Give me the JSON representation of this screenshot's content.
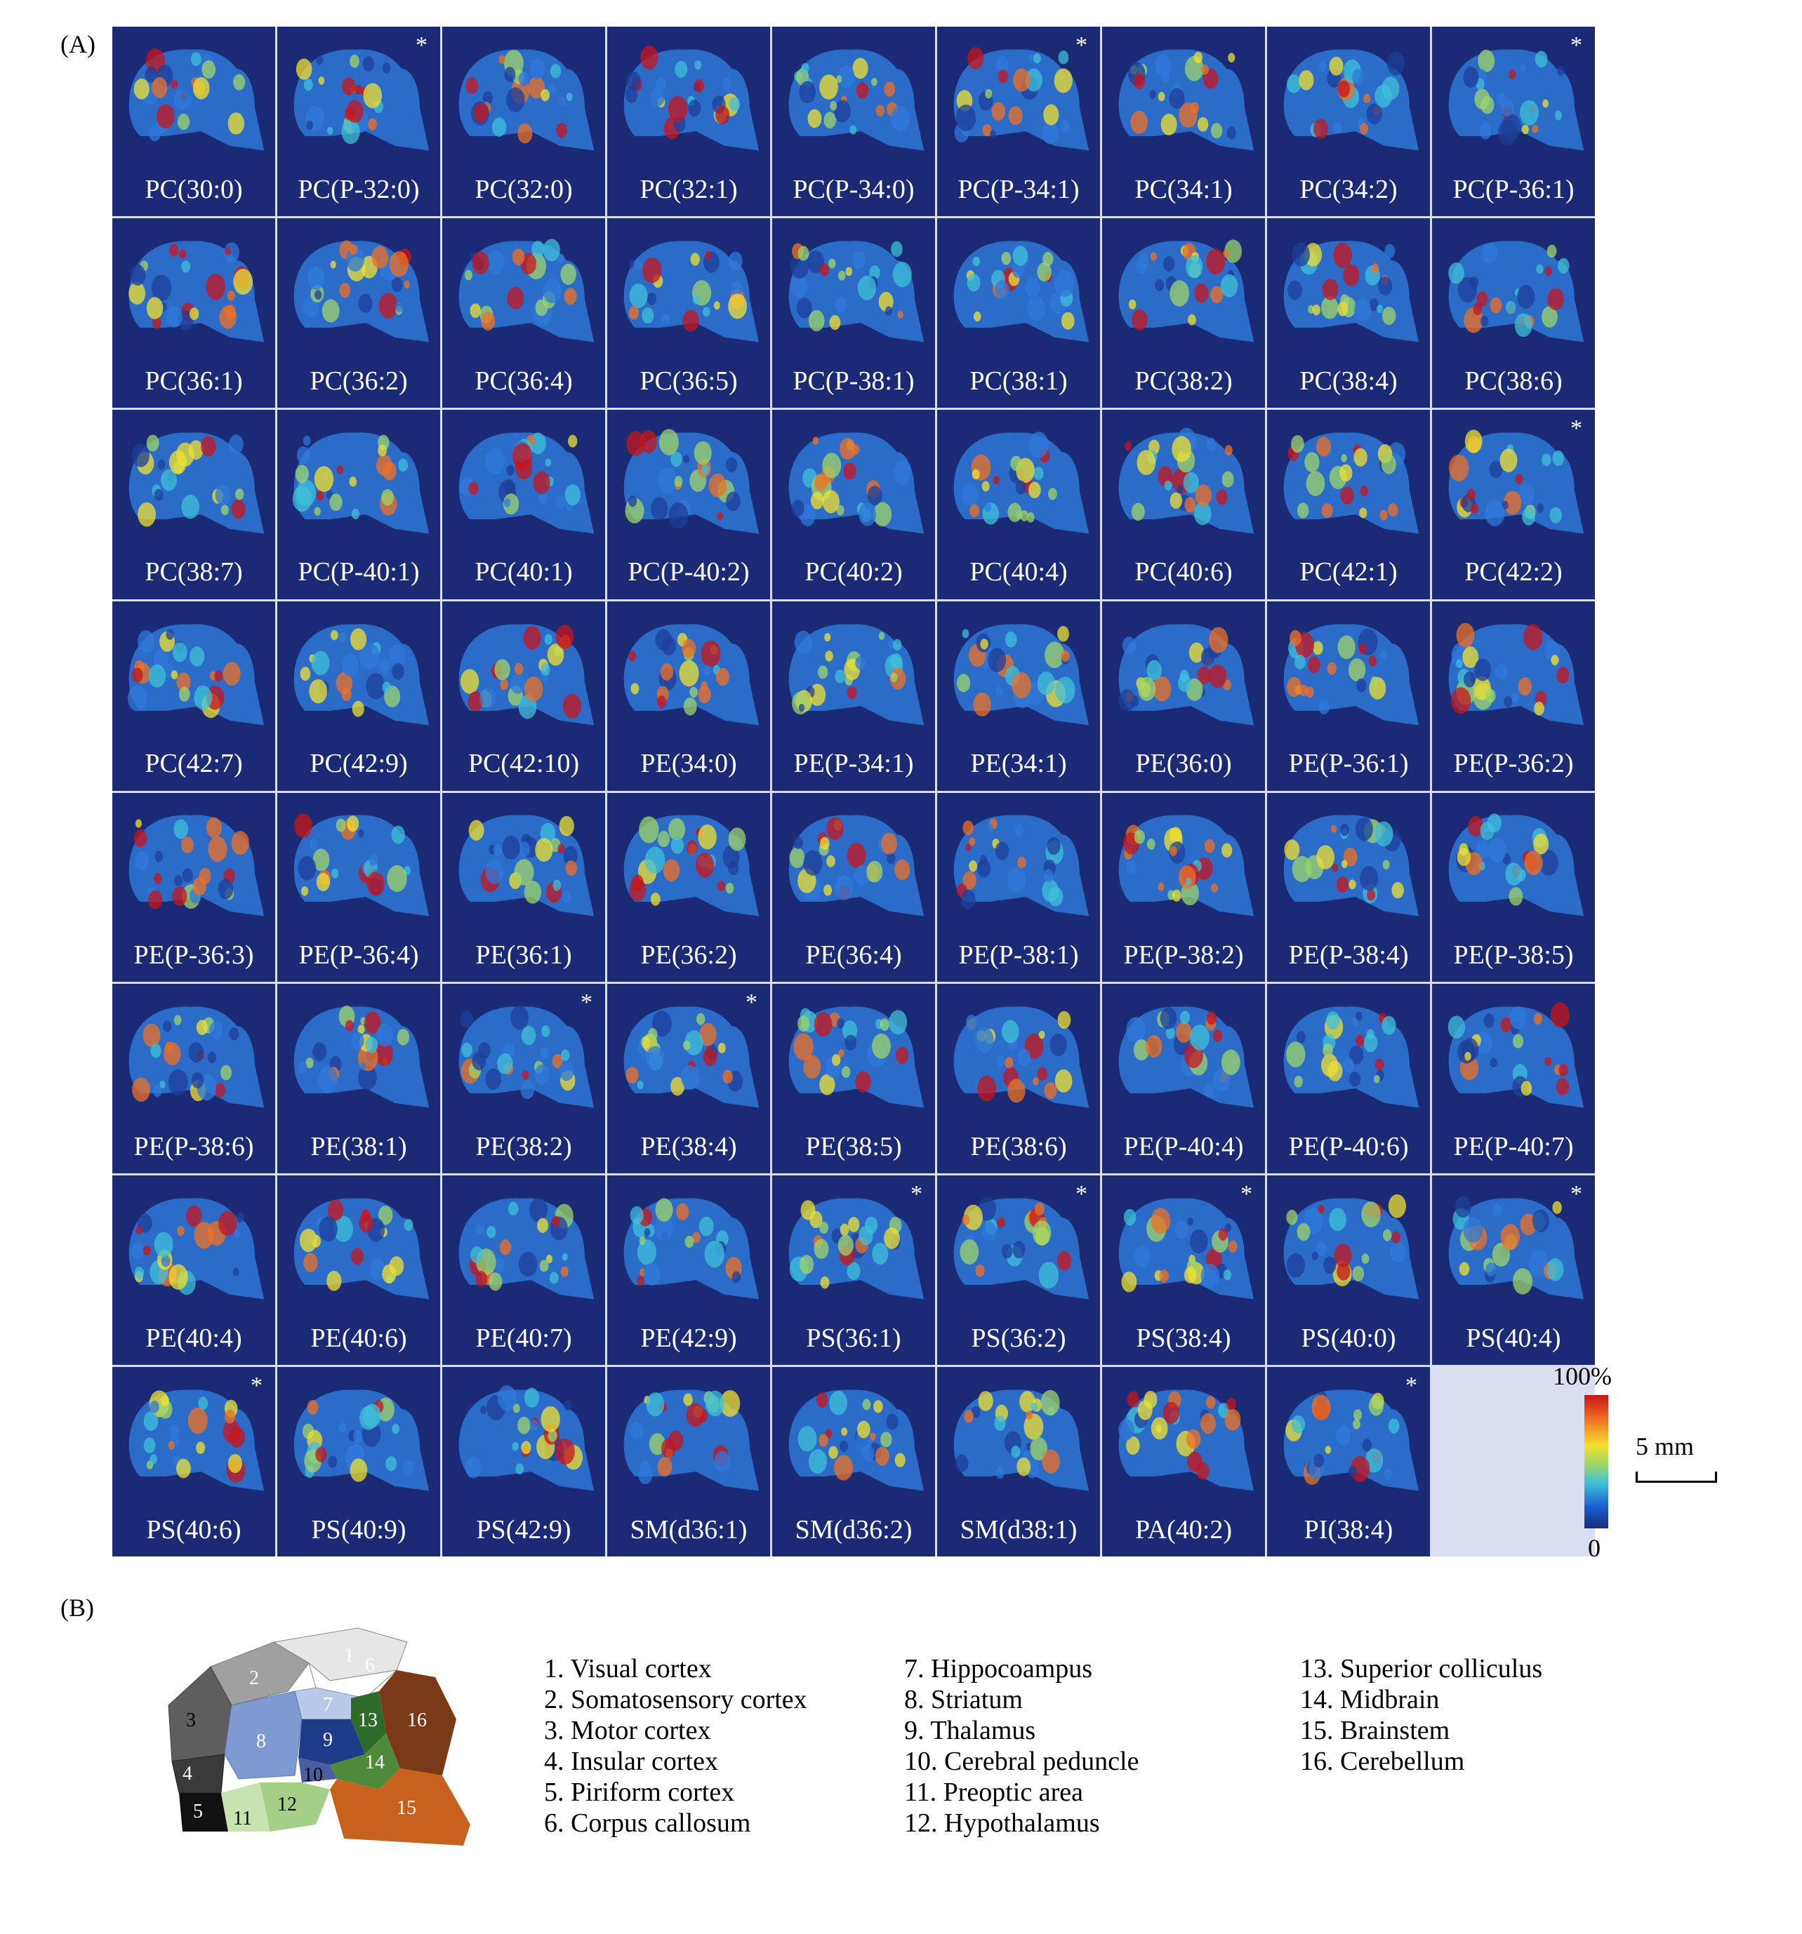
{
  "panel_a_label": "(A)",
  "panel_b_label": "(B)",
  "tiles": [
    {
      "label": "PC(30:0)",
      "star": ""
    },
    {
      "label": "PC(P-32:0)",
      "star": "*"
    },
    {
      "label": "PC(32:0)",
      "star": ""
    },
    {
      "label": "PC(32:1)",
      "star": ""
    },
    {
      "label": "PC(P-34:0)",
      "star": ""
    },
    {
      "label": "PC(P-34:1)",
      "star": "*"
    },
    {
      "label": "PC(34:1)",
      "star": ""
    },
    {
      "label": "PC(34:2)",
      "star": ""
    },
    {
      "label": "PC(P-36:1)",
      "star": "*"
    },
    {
      "label": "PC(36:1)",
      "star": ""
    },
    {
      "label": "PC(36:2)",
      "star": ""
    },
    {
      "label": "PC(36:4)",
      "star": ""
    },
    {
      "label": "PC(36:5)",
      "star": ""
    },
    {
      "label": "PC(P-38:1)",
      "star": ""
    },
    {
      "label": "PC(38:1)",
      "star": ""
    },
    {
      "label": "PC(38:2)",
      "star": ""
    },
    {
      "label": "PC(38:4)",
      "star": ""
    },
    {
      "label": "PC(38:6)",
      "star": ""
    },
    {
      "label": "PC(38:7)",
      "star": ""
    },
    {
      "label": "PC(P-40:1)",
      "star": ""
    },
    {
      "label": "PC(40:1)",
      "star": ""
    },
    {
      "label": "PC(P-40:2)",
      "star": ""
    },
    {
      "label": "PC(40:2)",
      "star": ""
    },
    {
      "label": "PC(40:4)",
      "star": ""
    },
    {
      "label": "PC(40:6)",
      "star": ""
    },
    {
      "label": "PC(42:1)",
      "star": ""
    },
    {
      "label": "PC(42:2)",
      "star": "*"
    },
    {
      "label": "PC(42:7)",
      "star": ""
    },
    {
      "label": "PC(42:9)",
      "star": ""
    },
    {
      "label": "PC(42:10)",
      "star": ""
    },
    {
      "label": "PE(34:0)",
      "star": ""
    },
    {
      "label": "PE(P-34:1)",
      "star": ""
    },
    {
      "label": "PE(34:1)",
      "star": ""
    },
    {
      "label": "PE(36:0)",
      "star": ""
    },
    {
      "label": "PE(P-36:1)",
      "star": ""
    },
    {
      "label": "PE(P-36:2)",
      "star": ""
    },
    {
      "label": "PE(P-36:3)",
      "star": ""
    },
    {
      "label": "PE(P-36:4)",
      "star": ""
    },
    {
      "label": "PE(36:1)",
      "star": ""
    },
    {
      "label": "PE(36:2)",
      "star": ""
    },
    {
      "label": "PE(36:4)",
      "star": ""
    },
    {
      "label": "PE(P-38:1)",
      "star": ""
    },
    {
      "label": "PE(P-38:2)",
      "star": ""
    },
    {
      "label": "PE(P-38:4)",
      "star": ""
    },
    {
      "label": "PE(P-38:5)",
      "star": ""
    },
    {
      "label": "PE(P-38:6)",
      "star": ""
    },
    {
      "label": "PE(38:1)",
      "star": ""
    },
    {
      "label": "PE(38:2)",
      "star": "*"
    },
    {
      "label": "PE(38:4)",
      "star": "*"
    },
    {
      "label": "PE(38:5)",
      "star": ""
    },
    {
      "label": "PE(38:6)",
      "star": ""
    },
    {
      "label": "PE(P-40:4)",
      "star": ""
    },
    {
      "label": "PE(P-40:6)",
      "star": ""
    },
    {
      "label": "PE(P-40:7)",
      "star": ""
    },
    {
      "label": "PE(40:4)",
      "star": ""
    },
    {
      "label": "PE(40:6)",
      "star": ""
    },
    {
      "label": "PE(40:7)",
      "star": ""
    },
    {
      "label": "PE(42:9)",
      "star": ""
    },
    {
      "label": "PS(36:1)",
      "star": "*"
    },
    {
      "label": "PS(36:2)",
      "star": "*"
    },
    {
      "label": "PS(38:4)",
      "star": "*"
    },
    {
      "label": "PS(40:0)",
      "star": ""
    },
    {
      "label": "PS(40:4)",
      "star": "*"
    },
    {
      "label": "PS(40:6)",
      "star": "*"
    },
    {
      "label": "PS(40:9)",
      "star": ""
    },
    {
      "label": "PS(42:9)",
      "star": ""
    },
    {
      "label": "SM(d36:1)",
      "star": ""
    },
    {
      "label": "SM(d36:2)",
      "star": ""
    },
    {
      "label": "SM(d38:1)",
      "star": ""
    },
    {
      "label": "PA(40:2)",
      "star": ""
    },
    {
      "label": "PI(38:4)",
      "star": "*"
    }
  ],
  "colorbar": {
    "max_label": "100%",
    "min_label": "0",
    "colors": [
      "#c8141a",
      "#f07020",
      "#f2e22e",
      "#9dd66a",
      "#3fc0d8",
      "#1a5ed0",
      "#1b2a74"
    ]
  },
  "scale_bar_label": "5 mm",
  "atlas_region_numbers": [
    "1",
    "2",
    "3",
    "4",
    "5",
    "6",
    "7",
    "8",
    "9",
    "10",
    "11",
    "12",
    "13",
    "14",
    "15",
    "16"
  ],
  "legend": {
    "col1": [
      "1. Visual cortex",
      "2. Somatosensory cortex",
      "3. Motor cortex",
      "4. Insular cortex",
      "5. Piriform cortex",
      "6. Corpus callosum"
    ],
    "col2": [
      "7. Hippocoampus",
      "8. Striatum",
      "9. Thalamus",
      "10. Cerebral peduncle",
      "11. Preoptic area",
      "12. Hypothalamus"
    ],
    "col3": [
      "13. Superior colliculus",
      "14. Midbrain",
      "15. Brainstem",
      "16. Cerebellum"
    ]
  }
}
